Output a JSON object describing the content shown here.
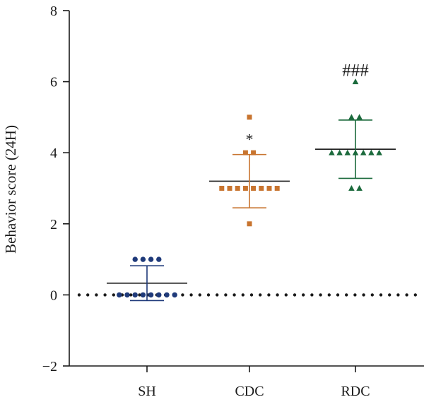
{
  "chart_data": {
    "type": "scatter",
    "title": "",
    "xlabel": "",
    "ylabel": "Behavior score (24H)",
    "ylim": [
      -2,
      8
    ],
    "yticks": [
      -2,
      0,
      2,
      4,
      6,
      8
    ],
    "ytick_labels": [
      "−2",
      "0",
      "2",
      "4",
      "6",
      "8"
    ],
    "reference_line": {
      "y": 0,
      "style": "dotted"
    },
    "categories": [
      "SH",
      "CDC",
      "RDC"
    ],
    "series": [
      {
        "name": "SH",
        "color": "#1f3a7a",
        "marker": "circle",
        "values": [
          1,
          1,
          1,
          1,
          0,
          0,
          0,
          0,
          0,
          0,
          0,
          0
        ],
        "mean": 0.33,
        "sd": 0.49,
        "annotation": ""
      },
      {
        "name": "CDC",
        "color": "#c8742f",
        "marker": "square",
        "values": [
          5,
          4,
          4,
          3,
          3,
          3,
          3,
          3,
          3,
          3,
          3,
          2
        ],
        "mean": 3.2,
        "sd": 0.75,
        "annotation": "*"
      },
      {
        "name": "RDC",
        "color": "#1b6a3c",
        "marker": "triangle",
        "values": [
          6,
          5,
          5,
          4,
          4,
          4,
          4,
          4,
          4,
          4,
          3,
          3
        ],
        "mean": 4.1,
        "sd": 0.82,
        "annotation": "###"
      }
    ]
  }
}
